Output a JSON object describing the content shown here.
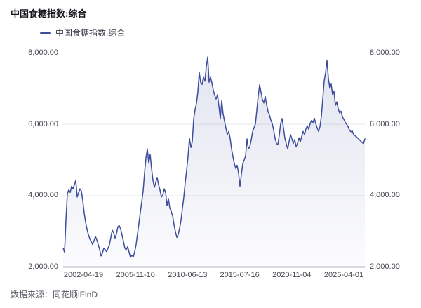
{
  "header": {
    "title": "中国食糖指数:综合"
  },
  "legend": {
    "items": [
      {
        "label": "中国食糖指数:综合",
        "color": "#3e4e9c",
        "marker": "line"
      }
    ]
  },
  "footer": {
    "source": "数据来源：同花顺iFinD"
  },
  "chart_data": {
    "type": "area",
    "title": "中国食糖指数:综合",
    "grid": "horizontal",
    "legend_position": "top-left",
    "ylim": [
      2000,
      8000
    ],
    "y_tick_values": [
      8000,
      6000,
      4000,
      2000
    ],
    "y_tick_labels_left": [
      "8,000.00",
      "6,000.00",
      "4,000.00",
      "2,000.00"
    ],
    "y_tick_labels_right": [
      "8,000.00",
      "6,000.00",
      "4,000.00",
      "2,000.00"
    ],
    "x_tick_labels": [
      "2002-04-19",
      "2005-11-10",
      "2010-06-13",
      "2015-07-16",
      "2020-11-04",
      "2026-04-01"
    ],
    "colors": {
      "line": "#3e4e9c",
      "fill_top": "rgba(62,78,156,0.15)",
      "fill_bottom": "rgba(62,78,156,0.02)",
      "gridline": "#e8e9f0",
      "axis_line": "#b4b8c4"
    },
    "series": [
      {
        "name": "中国食糖指数:综合",
        "color": "#3e4e9c",
        "values": [
          2520,
          2400,
          3300,
          4050,
          4150,
          4080,
          4250,
          4180,
          4300,
          4420,
          3950,
          4080,
          4180,
          4120,
          3850,
          3500,
          3250,
          3050,
          2900,
          2780,
          2700,
          2620,
          2720,
          2850,
          2750,
          2620,
          2480,
          2300,
          2380,
          2520,
          2470,
          2420,
          2520,
          2620,
          2820,
          3020,
          2950,
          2800,
          2920,
          3120,
          3150,
          3050,
          2880,
          2700,
          2520,
          2460,
          2560,
          2400,
          2260,
          2320,
          2270,
          2420,
          2620,
          2920,
          3220,
          3520,
          3820,
          4120,
          4620,
          5050,
          5300,
          4900,
          5150,
          4750,
          4420,
          4220,
          4360,
          4500,
          4300,
          4150,
          3950,
          4010,
          4180,
          4080,
          3710,
          3910,
          3640,
          3550,
          3420,
          3180,
          2980,
          2820,
          2900,
          3080,
          3300,
          3640,
          3950,
          4360,
          4700,
          5090,
          5600,
          5340,
          5500,
          6130,
          6400,
          6580,
          6900,
          7450,
          7150,
          7110,
          7310,
          7200,
          7600,
          7880,
          7170,
          7310,
          7150,
          6950,
          6800,
          6700,
          6820,
          6500,
          6150,
          6650,
          6280,
          6080,
          5880,
          5700,
          5790,
          5600,
          5300,
          5080,
          4890,
          4750,
          4840,
          4620,
          4250,
          4580,
          4890,
          4990,
          5100,
          5580,
          5300,
          5360,
          5550,
          5780,
          5890,
          6000,
          6380,
          6780,
          7100,
          6890,
          6690,
          6590,
          6770,
          6540,
          6350,
          6250,
          6110,
          6010,
          5830,
          5600,
          5450,
          5420,
          5680,
          6010,
          6150,
          5890,
          5600,
          5440,
          5300,
          5510,
          5700,
          5590,
          5450,
          5560,
          5360,
          5460,
          5610,
          5500,
          5650,
          5790,
          5700,
          5860,
          5950,
          5850,
          6010,
          6100,
          6040,
          6160,
          6010,
          5890,
          5790,
          5920,
          6220,
          6700,
          7210,
          7430,
          7780,
          7280,
          7000,
          7120,
          6820,
          6920,
          6520,
          6620,
          6430,
          6310,
          6360,
          6200,
          6130,
          6050,
          5990,
          5930,
          5830,
          5780,
          5800,
          5700,
          5670,
          5640,
          5600,
          5560,
          5520,
          5480,
          5450,
          5580
        ]
      }
    ]
  }
}
